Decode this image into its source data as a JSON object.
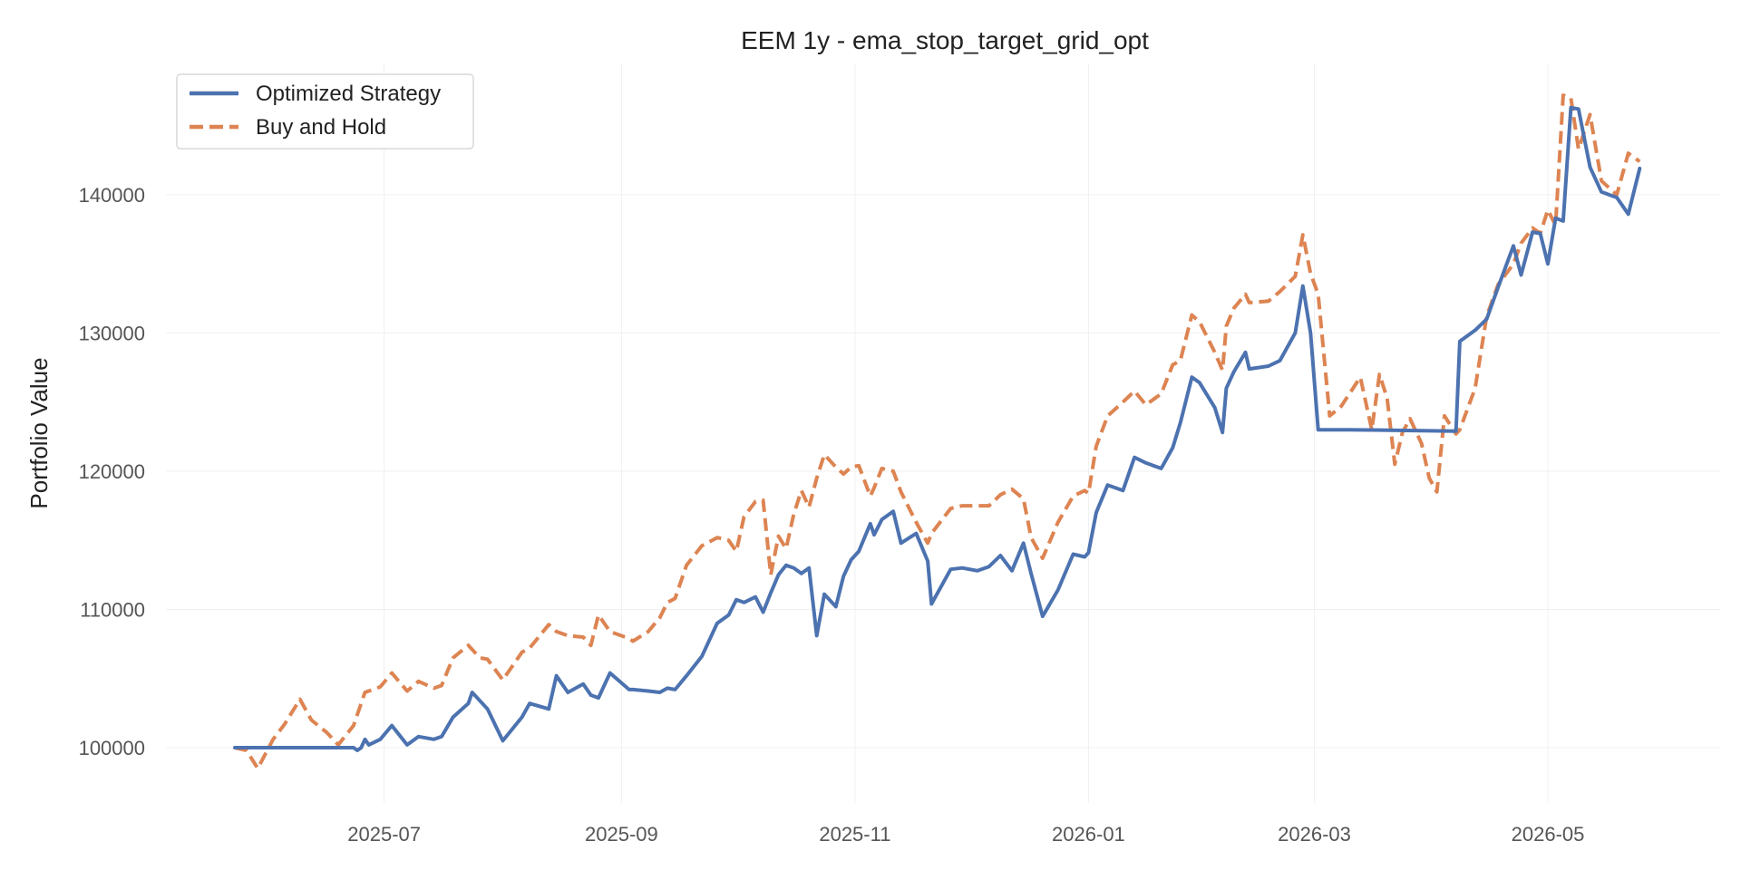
{
  "chart_data": {
    "type": "line",
    "title": "EEM 1y - ema_stop_target_grid_opt",
    "xlabel": "",
    "ylabel": "Portfolio Value",
    "x_type": "date",
    "xlim": [
      "2025-05-05",
      "2026-06-15"
    ],
    "ylim": [
      96000,
      149500
    ],
    "xticks": [
      "2025-07-01",
      "2025-09-01",
      "2025-11-01",
      "2026-01-01",
      "2026-03-01",
      "2026-05-01"
    ],
    "xtick_labels": [
      "2025-07",
      "2025-09",
      "2025-11",
      "2026-01",
      "2026-03",
      "2026-05"
    ],
    "yticks": [
      100000,
      110000,
      120000,
      130000,
      140000
    ],
    "ytick_labels": [
      "100000",
      "110000",
      "120000",
      "130000",
      "140000"
    ],
    "grid": true,
    "legend_position": "top-left",
    "series": [
      {
        "name": "Optimized Strategy",
        "color": "#4c72b0",
        "line_style": "solid",
        "x": [
          "2025-05-23",
          "2025-05-26",
          "2025-05-29",
          "2025-06-02",
          "2025-06-09",
          "2025-06-16",
          "2025-06-23",
          "2025-06-24",
          "2025-06-25",
          "2025-06-26",
          "2025-06-27",
          "2025-06-30",
          "2025-07-03",
          "2025-07-07",
          "2025-07-10",
          "2025-07-14",
          "2025-07-16",
          "2025-07-19",
          "2025-07-23",
          "2025-07-24",
          "2025-07-28",
          "2025-08-01",
          "2025-08-06",
          "2025-08-08",
          "2025-08-13",
          "2025-08-15",
          "2025-08-18",
          "2025-08-22",
          "2025-08-24",
          "2025-08-26",
          "2025-08-29",
          "2025-09-03",
          "2025-09-04",
          "2025-09-08",
          "2025-09-11",
          "2025-09-13",
          "2025-09-15",
          "2025-09-18",
          "2025-09-22",
          "2025-09-26",
          "2025-09-29",
          "2025-10-01",
          "2025-10-03",
          "2025-10-06",
          "2025-10-08",
          "2025-10-10",
          "2025-10-12",
          "2025-10-14",
          "2025-10-16",
          "2025-10-18",
          "2025-10-20",
          "2025-10-22",
          "2025-10-24",
          "2025-10-27",
          "2025-10-29",
          "2025-10-31",
          "2025-11-02",
          "2025-11-05",
          "2025-11-06",
          "2025-11-08",
          "2025-11-11",
          "2025-11-13",
          "2025-11-17",
          "2025-11-20",
          "2025-11-21",
          "2025-11-26",
          "2025-11-29",
          "2025-12-03",
          "2025-12-06",
          "2025-12-09",
          "2025-12-12",
          "2025-12-15",
          "2025-12-17",
          "2025-12-20",
          "2025-12-24",
          "2025-12-28",
          "2025-12-31",
          "2026-01-01",
          "2026-01-03",
          "2026-01-06",
          "2026-01-10",
          "2026-01-13",
          "2026-01-16",
          "2026-01-20",
          "2026-01-23",
          "2026-01-25",
          "2026-01-28",
          "2026-01-30",
          "2026-02-03",
          "2026-02-05",
          "2026-02-06",
          "2026-02-08",
          "2026-02-11",
          "2026-02-12",
          "2026-02-17",
          "2026-02-20",
          "2026-02-24",
          "2026-02-26",
          "2026-02-28",
          "2026-03-02",
          "2026-03-05",
          "2026-03-10",
          "2026-04-07",
          "2026-04-08",
          "2026-04-12",
          "2026-04-15",
          "2026-04-18",
          "2026-04-22",
          "2026-04-24",
          "2026-04-27",
          "2026-04-29",
          "2026-05-01",
          "2026-05-03",
          "2026-05-05",
          "2026-05-07",
          "2026-05-09",
          "2026-05-12",
          "2026-05-15",
          "2026-05-19",
          "2026-05-22",
          "2026-05-25"
        ],
        "values": [
          100000,
          100000,
          100000,
          100000,
          100000,
          100000,
          100000,
          99800,
          100000,
          100600,
          100200,
          100600,
          101600,
          100200,
          100800,
          100600,
          100800,
          102200,
          103200,
          104000,
          102800,
          100500,
          102200,
          103200,
          102800,
          105200,
          104000,
          104600,
          103800,
          103600,
          105400,
          104200,
          104200,
          104100,
          104000,
          104300,
          104200,
          105200,
          106600,
          109000,
          109600,
          110700,
          110500,
          110900,
          109800,
          111200,
          112500,
          113200,
          113000,
          112600,
          113000,
          108100,
          111100,
          110200,
          112400,
          113600,
          114200,
          116200,
          115400,
          116500,
          117100,
          114800,
          115500,
          113500,
          110400,
          112900,
          113000,
          112800,
          113100,
          113900,
          112800,
          114800,
          112600,
          109500,
          111400,
          114000,
          113800,
          114100,
          117000,
          119000,
          118600,
          121000,
          120600,
          120200,
          121700,
          123500,
          126800,
          126400,
          124600,
          122800,
          126000,
          127200,
          128600,
          127400,
          127600,
          128000,
          130000,
          133400,
          130000,
          123000,
          123000,
          123000,
          122900,
          129400,
          130200,
          131000,
          133300,
          136300,
          134200,
          137300,
          137200,
          135000,
          138300,
          138100,
          146300,
          146200,
          142000,
          140200,
          139800,
          138600,
          141900
        ]
      },
      {
        "name": "Buy and Hold",
        "color": "#dd8452",
        "line_style": "dashed",
        "x": [
          "2025-05-23",
          "2025-05-26",
          "2025-05-29",
          "2025-06-02",
          "2025-06-05",
          "2025-06-09",
          "2025-06-12",
          "2025-06-16",
          "2025-06-19",
          "2025-06-23",
          "2025-06-26",
          "2025-06-30",
          "2025-07-03",
          "2025-07-07",
          "2025-07-10",
          "2025-07-14",
          "2025-07-16",
          "2025-07-19",
          "2025-07-23",
          "2025-07-26",
          "2025-07-28",
          "2025-08-01",
          "2025-08-06",
          "2025-08-08",
          "2025-08-13",
          "2025-08-15",
          "2025-08-18",
          "2025-08-22",
          "2025-08-24",
          "2025-08-26",
          "2025-08-29",
          "2025-09-03",
          "2025-09-04",
          "2025-09-08",
          "2025-09-11",
          "2025-09-13",
          "2025-09-15",
          "2025-09-18",
          "2025-09-22",
          "2025-09-26",
          "2025-09-29",
          "2025-10-01",
          "2025-10-03",
          "2025-10-06",
          "2025-10-08",
          "2025-10-10",
          "2025-10-12",
          "2025-10-14",
          "2025-10-16",
          "2025-10-18",
          "2025-10-20",
          "2025-10-22",
          "2025-10-24",
          "2025-10-27",
          "2025-10-29",
          "2025-10-31",
          "2025-11-02",
          "2025-11-05",
          "2025-11-06",
          "2025-11-08",
          "2025-11-11",
          "2025-11-13",
          "2025-11-17",
          "2025-11-20",
          "2025-11-21",
          "2025-11-26",
          "2025-11-29",
          "2025-12-03",
          "2025-12-06",
          "2025-12-09",
          "2025-12-12",
          "2025-12-15",
          "2025-12-17",
          "2025-12-20",
          "2025-12-24",
          "2025-12-28",
          "2025-12-31",
          "2026-01-01",
          "2026-01-03",
          "2026-01-06",
          "2026-01-10",
          "2026-01-13",
          "2026-01-16",
          "2026-01-20",
          "2026-01-23",
          "2026-01-25",
          "2026-01-28",
          "2026-01-30",
          "2026-02-03",
          "2026-02-05",
          "2026-02-06",
          "2026-02-08",
          "2026-02-11",
          "2026-02-12",
          "2026-02-17",
          "2026-02-20",
          "2026-02-24",
          "2026-02-26",
          "2026-02-28",
          "2026-03-02",
          "2026-03-05",
          "2026-03-08",
          "2026-03-13",
          "2026-03-16",
          "2026-03-18",
          "2026-03-20",
          "2026-03-22",
          "2026-03-24",
          "2026-03-26",
          "2026-03-29",
          "2026-03-31",
          "2026-04-02",
          "2026-04-04",
          "2026-04-07",
          "2026-04-08",
          "2026-04-12",
          "2026-04-15",
          "2026-04-18",
          "2026-04-22",
          "2026-04-24",
          "2026-04-27",
          "2026-04-29",
          "2026-05-01",
          "2026-05-03",
          "2026-05-05",
          "2026-05-07",
          "2026-05-09",
          "2026-05-12",
          "2026-05-15",
          "2026-05-19",
          "2026-05-22",
          "2026-05-25"
        ],
        "values": [
          100000,
          99800,
          98500,
          100600,
          101700,
          103500,
          102000,
          101100,
          100200,
          101600,
          104000,
          104400,
          105400,
          104100,
          104800,
          104300,
          104500,
          106500,
          107400,
          106500,
          106400,
          104900,
          106900,
          107200,
          108900,
          108400,
          108100,
          108000,
          107400,
          109600,
          108400,
          107900,
          107700,
          108400,
          109400,
          110500,
          110800,
          113200,
          114600,
          115200,
          115000,
          114200,
          116700,
          117800,
          117900,
          112500,
          115300,
          114400,
          116900,
          118600,
          117400,
          119500,
          121200,
          120300,
          119800,
          120300,
          120400,
          118200,
          118800,
          120200,
          120000,
          118500,
          116300,
          114800,
          115500,
          117300,
          117500,
          117500,
          117500,
          118300,
          118700,
          118000,
          115200,
          113700,
          116300,
          118200,
          118600,
          118400,
          121800,
          124000,
          125000,
          125800,
          124800,
          125600,
          127700,
          128000,
          131300,
          130800,
          128600,
          127300,
          130500,
          131800,
          132800,
          132200,
          132300,
          133000,
          134100,
          137100,
          134300,
          132800,
          124000,
          124700,
          126800,
          123000,
          127000,
          125300,
          120500,
          122800,
          123800,
          122000,
          119500,
          118500,
          124000,
          122700,
          123000,
          126000,
          131200,
          133500,
          135000,
          136500,
          137600,
          137200,
          138900,
          137800,
          147200,
          147000,
          143300,
          145800,
          141000,
          140000,
          143000,
          142400
        ]
      }
    ]
  }
}
